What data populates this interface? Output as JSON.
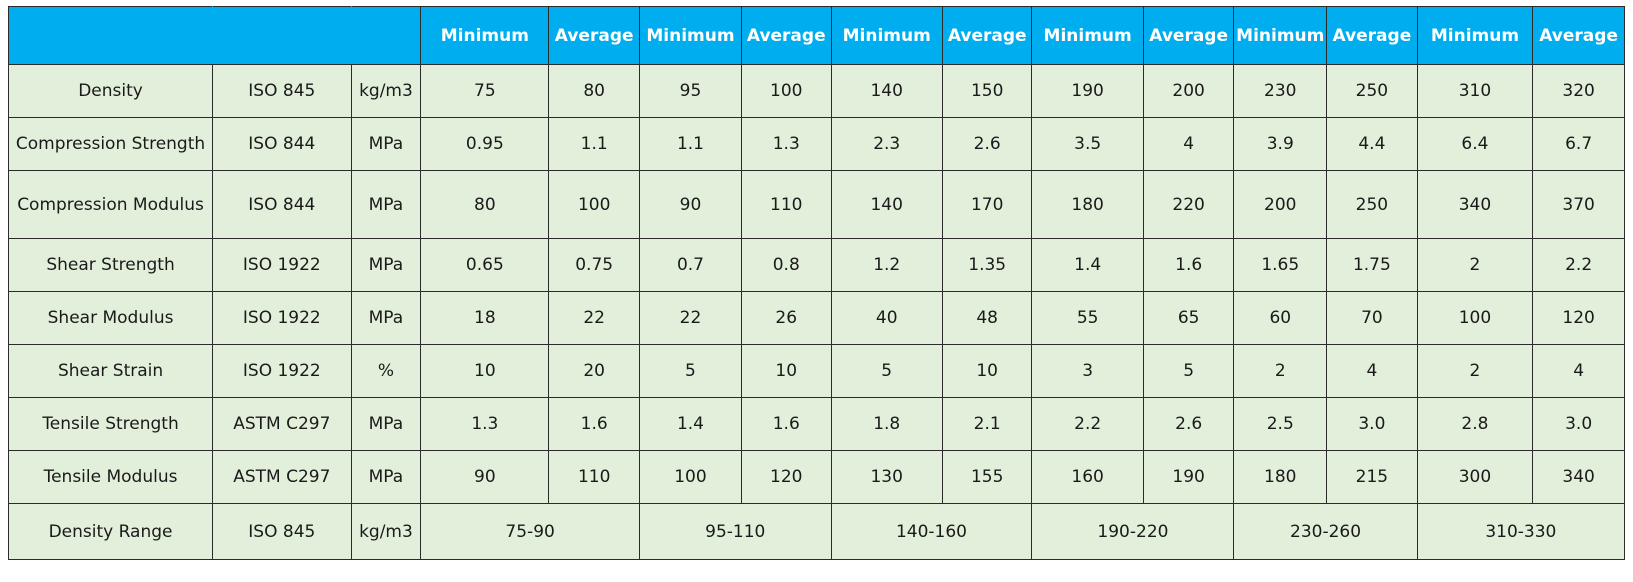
{
  "header": {
    "labels": [
      "Minimum",
      "Average",
      "Minimum",
      "Average",
      "Minimum",
      "Average",
      "Minimum",
      "Average",
      "Minimum",
      "Average",
      "Minimum",
      "Average"
    ]
  },
  "rows": [
    {
      "property": "Density",
      "standard": "ISO 845",
      "unit": "kg/m3",
      "values": [
        "75",
        "80",
        "95",
        "100",
        "140",
        "150",
        "190",
        "200",
        "230",
        "250",
        "310",
        "320"
      ]
    },
    {
      "property": "Compression Strength",
      "standard": "ISO 844",
      "unit": "MPa",
      "values": [
        "0.95",
        "1.1",
        "1.1",
        "1.3",
        "2.3",
        "2.6",
        "3.5",
        "4",
        "3.9",
        "4.4",
        "6.4",
        "6.7"
      ]
    },
    {
      "property": "Compression Modulus",
      "standard": "ISO 844",
      "unit": "MPa",
      "values": [
        "80",
        "100",
        "90",
        "110",
        "140",
        "170",
        "180",
        "220",
        "200",
        "250",
        "340",
        "370"
      ]
    },
    {
      "property": "Shear Strength",
      "standard": "ISO 1922",
      "unit": "MPa",
      "values": [
        "0.65",
        "0.75",
        "0.7",
        "0.8",
        "1.2",
        "1.35",
        "1.4",
        "1.6",
        "1.65",
        "1.75",
        "2",
        "2.2"
      ]
    },
    {
      "property": "Shear Modulus",
      "standard": "ISO 1922",
      "unit": "MPa",
      "values": [
        "18",
        "22",
        "22",
        "26",
        "40",
        "48",
        "55",
        "65",
        "60",
        "70",
        "100",
        "120"
      ]
    },
    {
      "property": "Shear Strain",
      "standard": "ISO 1922",
      "unit": "%",
      "values": [
        "10",
        "20",
        "5",
        "10",
        "5",
        "10",
        "3",
        "5",
        "2",
        "4",
        "2",
        "4"
      ]
    },
    {
      "property": "Tensile Strength",
      "standard": "ASTM C297",
      "unit": "MPa",
      "values": [
        "1.3",
        "1.6",
        "1.4",
        "1.6",
        "1.8",
        "2.1",
        "2.2",
        "2.6",
        "2.5",
        "3.0",
        "2.8",
        "3.0"
      ]
    },
    {
      "property": "Tensile Modulus",
      "standard": "ASTM C297",
      "unit": "MPa",
      "values": [
        "90",
        "110",
        "100",
        "120",
        "130",
        "155",
        "160",
        "190",
        "180",
        "215",
        "300",
        "340"
      ]
    }
  ],
  "range_row": {
    "property": "Density Range",
    "standard": "ISO 845",
    "unit": "kg/m3",
    "ranges": [
      "75-90",
      "95-110",
      "140-160",
      "190-220",
      "230-260",
      "310-330"
    ]
  },
  "colors": {
    "header_bg": "#00aeef",
    "header_text": "#ffffff",
    "cell_bg": "#e2efda",
    "border": "#2b2b2b"
  }
}
